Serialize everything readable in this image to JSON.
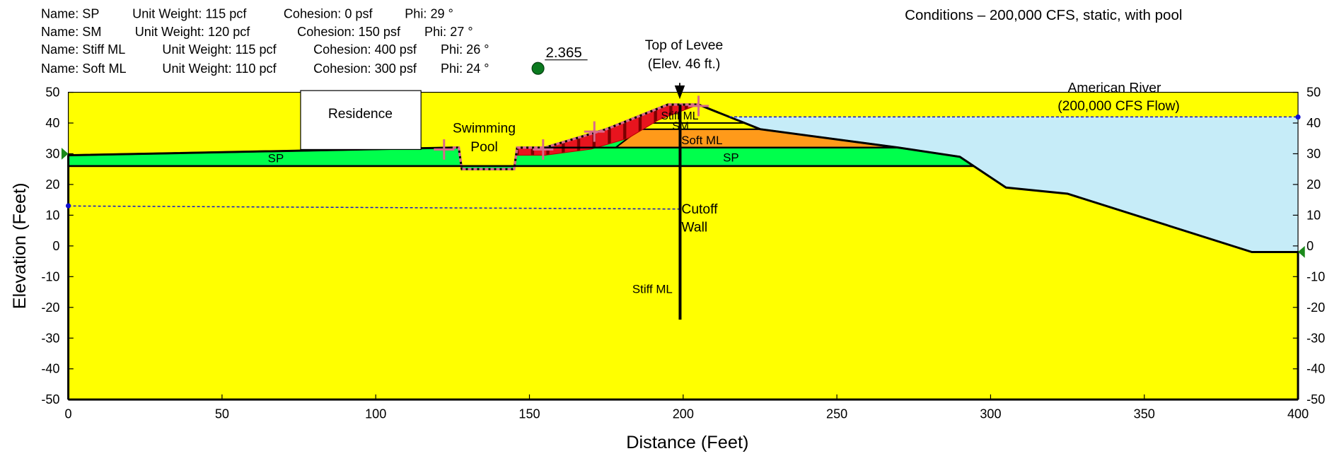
{
  "header": {
    "materials": [
      {
        "name": "Name: SP",
        "unit_weight": "Unit Weight: 115 pcf",
        "cohesion": "Cohesion: 0 psf",
        "phi": "Phi: 29 °"
      },
      {
        "name": "Name: SM",
        "unit_weight": "Unit Weight: 120 pcf",
        "cohesion": "Cohesion: 150 psf",
        "phi": "Phi: 27 °"
      },
      {
        "name": "Name: Stiff ML",
        "unit_weight": "Unit Weight: 115 pcf",
        "cohesion": "Cohesion: 400 psf",
        "phi": "Phi: 26 °"
      },
      {
        "name": "Name: Soft ML",
        "unit_weight": "Unit Weight: 110 pcf",
        "cohesion": "Cohesion: 300 psf",
        "phi": "Phi: 24 °"
      }
    ],
    "conditions": "Conditions – 200,000 CFS, static, with pool",
    "factor_of_safety": "2.365"
  },
  "labels": {
    "top_of_levee": [
      "Top of Levee",
      "(Elev. 46 ft.)"
    ],
    "residence": "Residence",
    "swimming_pool": [
      "Swimming",
      "Pool"
    ],
    "river": [
      "American River",
      "(200,000 CFS Flow)"
    ],
    "cutoff_wall": [
      "Cutoff",
      "Wall"
    ],
    "layers": [
      "SP",
      "SP",
      "Stiff ML",
      "SM",
      "Soft ML",
      "Stiff ML"
    ]
  },
  "axes": {
    "x_title": "Distance (Feet)",
    "y_title": "Elevation (Feet)",
    "xlim": [
      0,
      400
    ],
    "ylim": [
      -50,
      50
    ],
    "xticks": [
      0,
      50,
      100,
      150,
      200,
      250,
      300,
      350,
      400
    ],
    "yticks": [
      50,
      40,
      30,
      20,
      10,
      0,
      -10,
      -20,
      -30,
      -40,
      -50
    ]
  }
}
